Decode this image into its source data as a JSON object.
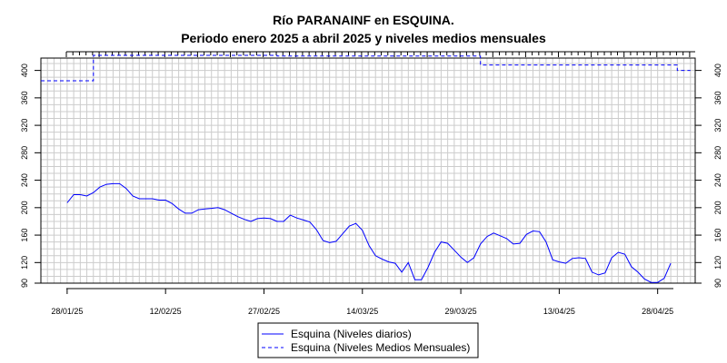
{
  "chart_data": {
    "type": "line",
    "title": "Río PARANAINF en ESQUINA.",
    "subtitle": "Periodo enero 2025 a abril 2025 y niveles medios mensuales",
    "xlabel": "",
    "ylabel": "",
    "ylim": [
      90,
      420
    ],
    "y_ticks": [
      90,
      120,
      160,
      200,
      240,
      280,
      320,
      360,
      400
    ],
    "x_tick_labels": [
      "28/01/25",
      "12/02/25",
      "27/02/25",
      "14/03/25",
      "29/03/25",
      "13/04/25",
      "28/04/25"
    ],
    "grid": true,
    "legend_position": "bottom-center",
    "colors": {
      "daily": "#0000ff",
      "monthly": "#0000ff",
      "grid": "#cccccc"
    },
    "series": [
      {
        "name": "Esquina (Niveles diarios)",
        "style": "solid",
        "x": [
          "28/01/25",
          "29/01/25",
          "30/01/25",
          "31/01/25",
          "01/02/25",
          "02/02/25",
          "03/02/25",
          "04/02/25",
          "05/02/25",
          "06/02/25",
          "07/02/25",
          "08/02/25",
          "09/02/25",
          "10/02/25",
          "11/02/25",
          "12/02/25",
          "13/02/25",
          "14/02/25",
          "15/02/25",
          "16/02/25",
          "17/02/25",
          "18/02/25",
          "19/02/25",
          "20/02/25",
          "21/02/25",
          "22/02/25",
          "23/02/25",
          "24/02/25",
          "25/02/25",
          "26/02/25",
          "27/02/25",
          "28/02/25",
          "01/03/25",
          "02/03/25",
          "03/03/25",
          "04/03/25",
          "05/03/25",
          "06/03/25",
          "07/03/25",
          "08/03/25",
          "09/03/25",
          "10/03/25",
          "11/03/25",
          "12/03/25",
          "13/03/25",
          "14/03/25",
          "15/03/25",
          "16/03/25",
          "17/03/25",
          "18/03/25",
          "19/03/25",
          "20/03/25",
          "21/03/25",
          "22/03/25",
          "23/03/25",
          "24/03/25",
          "25/03/25",
          "26/03/25",
          "27/03/25",
          "28/03/25",
          "29/03/25",
          "30/03/25",
          "31/03/25",
          "01/04/25",
          "02/04/25",
          "03/04/25",
          "04/04/25",
          "05/04/25",
          "06/04/25",
          "07/04/25",
          "08/04/25",
          "09/04/25",
          "10/04/25",
          "11/04/25",
          "12/04/25",
          "13/04/25",
          "14/04/25",
          "15/04/25",
          "16/04/25",
          "17/04/25",
          "18/04/25",
          "19/04/25",
          "20/04/25",
          "21/04/25",
          "22/04/25",
          "23/04/25",
          "24/04/25",
          "25/04/25",
          "26/04/25",
          "27/04/25",
          "28/04/25",
          "29/04/25",
          "30/04/25"
        ],
        "values": [
          207,
          219,
          219,
          217,
          222,
          230,
          234,
          235,
          235,
          228,
          217,
          213,
          213,
          213,
          211,
          211,
          206,
          198,
          192,
          192,
          197,
          198,
          199,
          200,
          197,
          192,
          187,
          183,
          180,
          184,
          185,
          184,
          180,
          180,
          189,
          185,
          182,
          179,
          168,
          152,
          149,
          151,
          162,
          173,
          177,
          167,
          145,
          130,
          125,
          121,
          119,
          106,
          120,
          95,
          95,
          113,
          135,
          150,
          148,
          138,
          128,
          120,
          127,
          147,
          158,
          163,
          159,
          155,
          147,
          148,
          161,
          166,
          165,
          150,
          124,
          121,
          119,
          126,
          127,
          126,
          106,
          102,
          105,
          127,
          135,
          132,
          114,
          106,
          96,
          91,
          91,
          97,
          119
        ]
      },
      {
        "name": "Esquina (Niveles Medios Mensuales)",
        "style": "dashed",
        "segments": [
          {
            "month": "enero 2025",
            "from": "24/01/25",
            "to": "31/01/25",
            "value": 385
          },
          {
            "month": "febrero 2025",
            "from": "01/02/25",
            "to": "28/02/25",
            "value": 422
          },
          {
            "month": "marzo 2025",
            "from": "01/03/25",
            "to": "31/03/25",
            "value": 421
          },
          {
            "month": "abril 2025",
            "from": "01/04/25",
            "to": "30/04/25",
            "value": 408
          },
          {
            "month": "mayo 2025",
            "from": "01/05/25",
            "to": "02/05/25",
            "value": 400
          }
        ]
      }
    ]
  }
}
